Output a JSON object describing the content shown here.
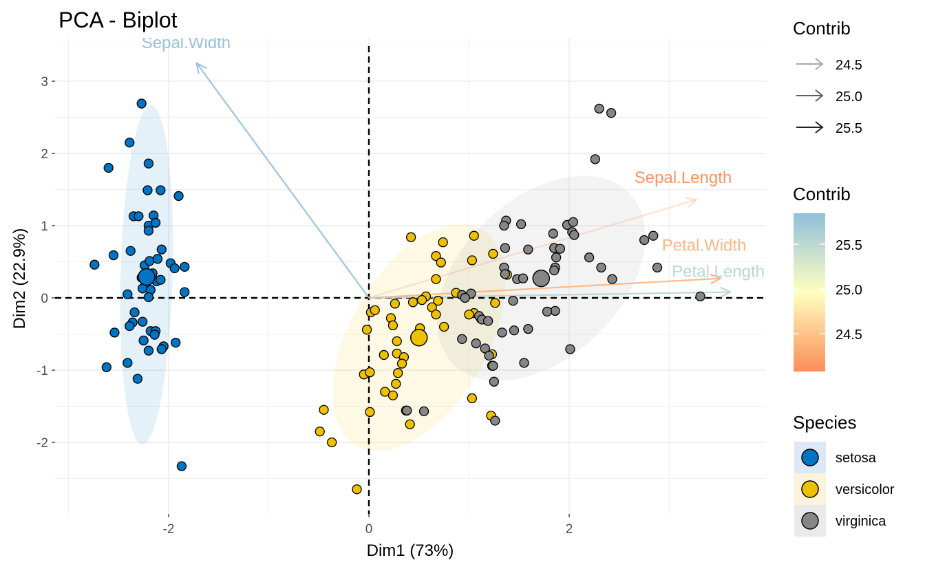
{
  "chart_data": {
    "type": "scatter",
    "title": "PCA - Biplot",
    "xlabel": "Dim1 (73%)",
    "ylabel": "Dim2 (22.9%)",
    "xlim": [
      -3.0,
      3.75
    ],
    "ylim": [
      -2.9,
      3.5
    ],
    "xticks": [
      -2,
      0,
      2
    ],
    "yticks": [
      -2,
      -1,
      0,
      1,
      2,
      3
    ],
    "grid": true,
    "legend_placement": "right",
    "colors": {
      "setosa": "#0073C2",
      "versicolor": "#EFC000",
      "virginica": "#868686"
    },
    "series": [
      {
        "name": "setosa",
        "centroid": [
          -2.22,
          0.29
        ],
        "ellipse": {
          "center": [
            -2.22,
            0.32
          ],
          "rx": 0.52,
          "ry": 2.35,
          "angle": 1.5
        },
        "points": [
          [
            -2.27,
            2.69
          ],
          [
            -2.39,
            2.15
          ],
          [
            -2.2,
            1.86
          ],
          [
            -2.6,
            1.8
          ],
          [
            -2.21,
            1.49
          ],
          [
            -2.08,
            1.49
          ],
          [
            -1.9,
            1.41
          ],
          [
            -2.35,
            1.13
          ],
          [
            -2.3,
            1.13
          ],
          [
            -2.15,
            1.14
          ],
          [
            -2.2,
            1.0
          ],
          [
            -2.13,
            1.04
          ],
          [
            -2.2,
            0.93
          ],
          [
            -2.07,
            0.67
          ],
          [
            -2.38,
            0.65
          ],
          [
            -2.55,
            0.59
          ],
          [
            -1.98,
            0.48
          ],
          [
            -2.24,
            0.45
          ],
          [
            -2.19,
            0.51
          ],
          [
            -2.11,
            0.54
          ],
          [
            -1.94,
            0.41
          ],
          [
            -1.84,
            0.43
          ],
          [
            -2.74,
            0.46
          ],
          [
            -2.27,
            0.28
          ],
          [
            -2.16,
            0.34
          ],
          [
            -2.12,
            0.23
          ],
          [
            -2.08,
            0.25
          ],
          [
            -2.26,
            0.13
          ],
          [
            -2.18,
            0.11
          ],
          [
            -2.41,
            0.05
          ],
          [
            -1.84,
            0.08
          ],
          [
            -2.2,
            0.01
          ],
          [
            -2.34,
            -0.2
          ],
          [
            -2.26,
            -0.33
          ],
          [
            -2.36,
            -0.34
          ],
          [
            -2.39,
            -0.39
          ],
          [
            -2.54,
            -0.48
          ],
          [
            -2.18,
            -0.46
          ],
          [
            -2.13,
            -0.46
          ],
          [
            -2.14,
            -0.51
          ],
          [
            -2.25,
            -0.59
          ],
          [
            -2.05,
            -0.67
          ],
          [
            -2.07,
            -0.71
          ],
          [
            -2.2,
            -0.73
          ],
          [
            -1.93,
            -0.62
          ],
          [
            -2.41,
            -0.9
          ],
          [
            -2.62,
            -0.96
          ],
          [
            -2.31,
            -1.12
          ],
          [
            -1.87,
            -2.33
          ]
        ]
      },
      {
        "name": "versicolor",
        "centroid": [
          0.5,
          -0.55
        ],
        "ellipse": {
          "center": [
            0.5,
            -0.55
          ],
          "rx": 2.5,
          "ry": 0.95,
          "angle": -60
        },
        "points": [
          [
            0.42,
            0.84
          ],
          [
            1.05,
            0.86
          ],
          [
            0.74,
            0.77
          ],
          [
            1.24,
            0.61
          ],
          [
            0.67,
            0.58
          ],
          [
            0.72,
            0.49
          ],
          [
            1.03,
            0.52
          ],
          [
            1.38,
            0.32
          ],
          [
            0.87,
            0.07
          ],
          [
            0.67,
            0.26
          ],
          [
            0.57,
            0.02
          ],
          [
            0.53,
            -0.03
          ],
          [
            0.44,
            -0.06
          ],
          [
            0.26,
            -0.08
          ],
          [
            0.69,
            -0.04
          ],
          [
            0.63,
            -0.13
          ],
          [
            0.67,
            -0.23
          ],
          [
            0.02,
            -0.2
          ],
          [
            0.06,
            -0.17
          ],
          [
            -0.02,
            -0.44
          ],
          [
            0.22,
            -0.28
          ],
          [
            0.24,
            -0.38
          ],
          [
            0.51,
            -0.42
          ],
          [
            0.48,
            -0.56
          ],
          [
            0.28,
            -0.6
          ],
          [
            0.75,
            -0.4
          ],
          [
            1.05,
            -0.21
          ],
          [
            1.12,
            -0.29
          ],
          [
            1.26,
            -0.07
          ],
          [
            0.15,
            -0.79
          ],
          [
            0.28,
            -0.77
          ],
          [
            0.35,
            -0.82
          ],
          [
            0.33,
            -0.91
          ],
          [
            0.29,
            -1.04
          ],
          [
            0.27,
            -1.19
          ],
          [
            0.16,
            -1.3
          ],
          [
            -0.05,
            -1.06
          ],
          [
            0.01,
            -1.03
          ],
          [
            0.24,
            -1.35
          ],
          [
            1.23,
            -0.78
          ],
          [
            1.23,
            -0.94
          ],
          [
            1.03,
            -1.39
          ],
          [
            0.01,
            -1.58
          ],
          [
            0.37,
            -1.56
          ],
          [
            0.41,
            -1.75
          ],
          [
            1.22,
            -1.63
          ],
          [
            -0.45,
            -1.55
          ],
          [
            -0.49,
            -1.85
          ],
          [
            -0.37,
            -2.0
          ],
          [
            -0.12,
            -2.65
          ],
          [
            1.0,
            -0.23
          ]
        ]
      },
      {
        "name": "virginica",
        "centroid": [
          1.72,
          0.27
        ],
        "ellipse": {
          "center": [
            1.72,
            0.27
          ],
          "rx": 2.45,
          "ry": 1.1,
          "angle": -44
        },
        "points": [
          [
            2.3,
            2.62
          ],
          [
            2.42,
            2.56
          ],
          [
            2.26,
            1.92
          ],
          [
            1.37,
            1.07
          ],
          [
            1.52,
            1.02
          ],
          [
            1.98,
            1.01
          ],
          [
            1.35,
            1.0
          ],
          [
            2.04,
            1.05
          ],
          [
            1.84,
            0.89
          ],
          [
            2.03,
            0.91
          ],
          [
            2.05,
            0.87
          ],
          [
            2.75,
            0.8
          ],
          [
            2.84,
            0.86
          ],
          [
            1.85,
            0.69
          ],
          [
            1.91,
            0.68
          ],
          [
            1.36,
            0.69
          ],
          [
            1.59,
            0.67
          ],
          [
            1.87,
            0.56
          ],
          [
            2.2,
            0.56
          ],
          [
            1.86,
            0.42
          ],
          [
            1.35,
            0.42
          ],
          [
            1.85,
            0.38
          ],
          [
            2.32,
            0.42
          ],
          [
            2.88,
            0.42
          ],
          [
            1.36,
            0.33
          ],
          [
            1.48,
            0.26
          ],
          [
            1.54,
            0.27
          ],
          [
            2.43,
            0.26
          ],
          [
            0.93,
            0.04
          ],
          [
            1.02,
            0.06
          ],
          [
            0.96,
            0.0
          ],
          [
            1.44,
            -0.04
          ],
          [
            1.86,
            -0.18
          ],
          [
            1.78,
            -0.19
          ],
          [
            1.1,
            -0.25
          ],
          [
            1.13,
            -0.3
          ],
          [
            1.19,
            -0.32
          ],
          [
            1.33,
            -0.48
          ],
          [
            1.45,
            -0.45
          ],
          [
            1.59,
            -0.43
          ],
          [
            0.93,
            -0.57
          ],
          [
            1.07,
            -0.63
          ],
          [
            1.16,
            -0.7
          ],
          [
            1.2,
            -0.8
          ],
          [
            1.55,
            -0.9
          ],
          [
            1.24,
            -0.94
          ],
          [
            1.25,
            -1.16
          ],
          [
            0.55,
            -1.57
          ],
          [
            0.38,
            -1.56
          ],
          [
            1.26,
            -1.7
          ],
          [
            2.01,
            -0.71
          ],
          [
            3.31,
            0.02
          ]
        ]
      }
    ],
    "variables": [
      {
        "name": "Sepal.Width",
        "x": -1.72,
        "y": 3.25,
        "contrib": 25.9
      },
      {
        "name": "Sepal.Length",
        "x": 3.27,
        "y": 1.36,
        "contrib": 24.1
      },
      {
        "name": "Petal.Width",
        "x": 3.51,
        "y": 0.27,
        "contrib": 24.4
      },
      {
        "name": "Petal.Length",
        "x": 3.61,
        "y": 0.08,
        "contrib": 25.6
      }
    ],
    "legend_contrib_arrows": {
      "title": "Contrib",
      "labels": [
        "24.5",
        "25.0",
        "25.5"
      ]
    },
    "legend_contrib_gradient": {
      "title": "Contrib",
      "labels": [
        "25.5",
        "25.0",
        "24.5"
      ],
      "colors": [
        "#FC8D59",
        "#FFFFBF",
        "#91BFDB"
      ]
    },
    "legend_species": {
      "title": "Species",
      "labels": [
        "setosa",
        "versicolor",
        "virginica"
      ]
    }
  }
}
